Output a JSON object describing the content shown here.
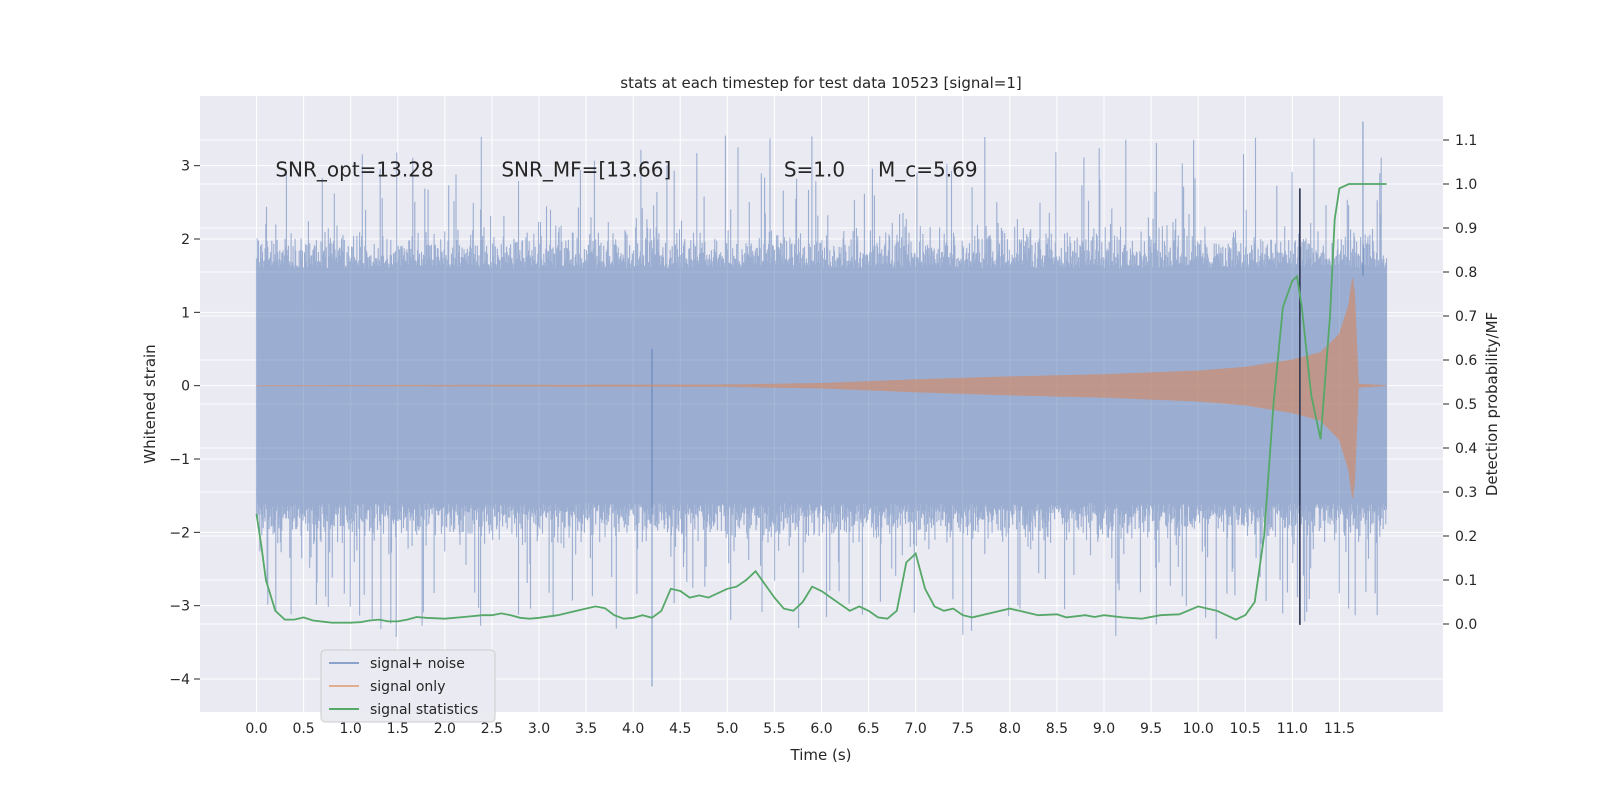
{
  "chart_data": {
    "type": "line",
    "title": "stats at each timestep for test data 10523 [signal=1]",
    "xlabel": "Time (s)",
    "ylabel": "Whitened strain",
    "ylabel_right": "Detection probability/MF",
    "xlim": [
      -0.6,
      12.6
    ],
    "ylim": [
      -4.45,
      3.95
    ],
    "ylim_right": [
      -0.2,
      1.2
    ],
    "x_ticks": [
      "0.0",
      "0.5",
      "1.0",
      "1.5",
      "2.0",
      "2.5",
      "3.0",
      "3.5",
      "4.0",
      "4.5",
      "5.0",
      "5.5",
      "6.0",
      "6.5",
      "7.0",
      "7.5",
      "8.0",
      "8.5",
      "9.0",
      "9.5",
      "10.0",
      "10.5",
      "11.0",
      "11.5"
    ],
    "y_ticks_left": [
      "3",
      "2",
      "1",
      "0",
      "−1",
      "−2",
      "−3",
      "−4"
    ],
    "y_ticks_right": [
      "1.1",
      "1.0",
      "0.9",
      "0.8",
      "0.7",
      "0.6",
      "0.5",
      "0.4",
      "0.3",
      "0.2",
      "0.1",
      "0.0"
    ],
    "grid": true,
    "legend_position": "lower-left",
    "annotations": [
      {
        "x": 0.2,
        "y": 2.85,
        "text": "SNR_opt=13.28"
      },
      {
        "x": 2.6,
        "y": 2.85,
        "text": "SNR_MF=[13.66]"
      },
      {
        "x": 5.6,
        "y": 2.85,
        "text": "S=1.0"
      },
      {
        "x": 6.6,
        "y": 2.85,
        "text": "M_c=5.69"
      }
    ],
    "vline_x": 11.08,
    "series": [
      {
        "name": "signal+ noise",
        "color": "#4c72b0",
        "kind": "noise-band",
        "x_range": [
          0.0,
          12.0
        ],
        "typical_range": [
          -1.6,
          1.6
        ],
        "peak_max": 3.6,
        "peak_min": -4.1
      },
      {
        "name": "signal only",
        "color": "#dd8452",
        "kind": "chirp-envelope",
        "envelope": [
          [
            0.0,
            0.0
          ],
          [
            5.0,
            0.01
          ],
          [
            6.0,
            0.03
          ],
          [
            7.0,
            0.08
          ],
          [
            8.0,
            0.12
          ],
          [
            9.0,
            0.15
          ],
          [
            10.0,
            0.2
          ],
          [
            10.5,
            0.25
          ],
          [
            11.0,
            0.35
          ],
          [
            11.3,
            0.45
          ],
          [
            11.5,
            0.7
          ],
          [
            11.6,
            1.1
          ],
          [
            11.65,
            1.55
          ],
          [
            11.7,
            0.02
          ],
          [
            12.0,
            0.0
          ]
        ]
      },
      {
        "name": "signal statistics",
        "color": "#55a868",
        "axis": "right",
        "points": [
          [
            0.0,
            0.25
          ],
          [
            0.05,
            0.18
          ],
          [
            0.1,
            0.1
          ],
          [
            0.2,
            0.03
          ],
          [
            0.3,
            0.01
          ],
          [
            0.4,
            0.01
          ],
          [
            0.5,
            0.015
          ],
          [
            0.6,
            0.008
          ],
          [
            0.8,
            0.003
          ],
          [
            1.0,
            0.003
          ],
          [
            1.1,
            0.004
          ],
          [
            1.2,
            0.008
          ],
          [
            1.3,
            0.01
          ],
          [
            1.4,
            0.006
          ],
          [
            1.5,
            0.006
          ],
          [
            1.6,
            0.01
          ],
          [
            1.7,
            0.016
          ],
          [
            1.8,
            0.014
          ],
          [
            2.0,
            0.012
          ],
          [
            2.2,
            0.016
          ],
          [
            2.4,
            0.02
          ],
          [
            2.5,
            0.02
          ],
          [
            2.6,
            0.024
          ],
          [
            2.7,
            0.02
          ],
          [
            2.8,
            0.014
          ],
          [
            2.9,
            0.012
          ],
          [
            3.0,
            0.014
          ],
          [
            3.2,
            0.02
          ],
          [
            3.4,
            0.03
          ],
          [
            3.6,
            0.04
          ],
          [
            3.7,
            0.036
          ],
          [
            3.8,
            0.02
          ],
          [
            3.9,
            0.012
          ],
          [
            4.0,
            0.014
          ],
          [
            4.1,
            0.02
          ],
          [
            4.2,
            0.014
          ],
          [
            4.3,
            0.03
          ],
          [
            4.4,
            0.08
          ],
          [
            4.5,
            0.075
          ],
          [
            4.6,
            0.06
          ],
          [
            4.7,
            0.065
          ],
          [
            4.8,
            0.06
          ],
          [
            5.0,
            0.08
          ],
          [
            5.1,
            0.085
          ],
          [
            5.2,
            0.1
          ],
          [
            5.3,
            0.12
          ],
          [
            5.4,
            0.09
          ],
          [
            5.5,
            0.06
          ],
          [
            5.6,
            0.035
          ],
          [
            5.7,
            0.03
          ],
          [
            5.8,
            0.05
          ],
          [
            5.9,
            0.085
          ],
          [
            6.0,
            0.075
          ],
          [
            6.1,
            0.06
          ],
          [
            6.2,
            0.045
          ],
          [
            6.3,
            0.03
          ],
          [
            6.4,
            0.04
          ],
          [
            6.5,
            0.03
          ],
          [
            6.6,
            0.015
          ],
          [
            6.7,
            0.012
          ],
          [
            6.8,
            0.03
          ],
          [
            6.9,
            0.14
          ],
          [
            7.0,
            0.16
          ],
          [
            7.1,
            0.08
          ],
          [
            7.2,
            0.04
          ],
          [
            7.3,
            0.03
          ],
          [
            7.4,
            0.035
          ],
          [
            7.5,
            0.02
          ],
          [
            7.6,
            0.015
          ],
          [
            7.8,
            0.025
          ],
          [
            8.0,
            0.035
          ],
          [
            8.1,
            0.03
          ],
          [
            8.3,
            0.02
          ],
          [
            8.5,
            0.022
          ],
          [
            8.6,
            0.015
          ],
          [
            8.8,
            0.02
          ],
          [
            8.9,
            0.016
          ],
          [
            9.0,
            0.02
          ],
          [
            9.2,
            0.015
          ],
          [
            9.4,
            0.012
          ],
          [
            9.6,
            0.02
          ],
          [
            9.8,
            0.022
          ],
          [
            10.0,
            0.04
          ],
          [
            10.1,
            0.035
          ],
          [
            10.2,
            0.03
          ],
          [
            10.3,
            0.02
          ],
          [
            10.4,
            0.01
          ],
          [
            10.5,
            0.02
          ],
          [
            10.6,
            0.05
          ],
          [
            10.7,
            0.2
          ],
          [
            10.8,
            0.5
          ],
          [
            10.9,
            0.72
          ],
          [
            11.0,
            0.78
          ],
          [
            11.05,
            0.79
          ],
          [
            11.1,
            0.72
          ],
          [
            11.2,
            0.52
          ],
          [
            11.3,
            0.42
          ],
          [
            11.4,
            0.7
          ],
          [
            11.45,
            0.92
          ],
          [
            11.5,
            0.99
          ],
          [
            11.6,
            1.0
          ],
          [
            11.8,
            1.0
          ],
          [
            12.0,
            1.0
          ]
        ]
      }
    ]
  }
}
